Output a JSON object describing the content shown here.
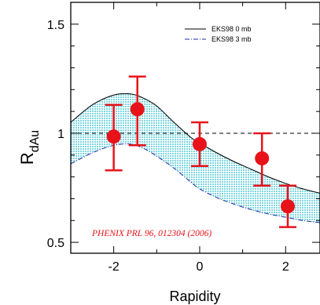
{
  "chart_data": {
    "type": "scatter",
    "xlabel": "Rapidity",
    "ylabel_base": "R",
    "ylabel_sub": "dAu",
    "xlim": [
      -3,
      2.8
    ],
    "ylim": [
      0.45,
      1.6
    ],
    "x_ticks": [
      -2,
      0,
      2
    ],
    "y_ticks": [
      0.5,
      1,
      1.5
    ],
    "x_tick_labels": [
      "-2",
      "0",
      "2"
    ],
    "y_tick_labels": [
      "0.5",
      "1",
      "1.5"
    ],
    "reference_line": 1.0,
    "series": [
      {
        "name": "PHENIX PRL 96, 012304 (2006)",
        "kind": "points_with_errors",
        "color": "#e8131a",
        "x": [
          -2.0,
          -1.45,
          0.0,
          1.45,
          2.05
        ],
        "y": [
          0.985,
          1.11,
          0.95,
          0.885,
          0.665
        ],
        "err_low": [
          0.155,
          0.165,
          0.1,
          0.125,
          0.095
        ],
        "err_high": [
          0.145,
          0.15,
          0.1,
          0.115,
          0.095
        ]
      },
      {
        "name": "EKS98 0 mb",
        "kind": "line",
        "style": "solid",
        "color": "#000000",
        "x": [
          -3.0,
          -2.5,
          -2.0,
          -1.6,
          -1.3,
          -1.0,
          -0.6,
          -0.2,
          0.0,
          0.4,
          0.8,
          1.2,
          1.6,
          2.0,
          2.4,
          2.8
        ],
        "y": [
          1.05,
          1.13,
          1.175,
          1.18,
          1.16,
          1.125,
          1.05,
          0.98,
          0.955,
          0.91,
          0.87,
          0.835,
          0.8,
          0.77,
          0.745,
          0.725
        ]
      },
      {
        "name": "EKS98 3 mb",
        "kind": "line",
        "style": "dashdot",
        "color": "#1f2aa8",
        "x": [
          -3.0,
          -2.5,
          -2.0,
          -1.6,
          -1.3,
          -1.0,
          -0.6,
          -0.2,
          0.0,
          0.4,
          0.8,
          1.2,
          1.6,
          2.0,
          2.4,
          2.8
        ],
        "y": [
          0.86,
          0.91,
          0.945,
          0.95,
          0.93,
          0.895,
          0.84,
          0.775,
          0.745,
          0.705,
          0.675,
          0.65,
          0.63,
          0.615,
          0.6,
          0.59
        ]
      }
    ],
    "band_fill_color": "#9fe3ea",
    "legend_position": "top-right",
    "annotation": "PHENIX PRL 96, 012304 (2006)"
  }
}
